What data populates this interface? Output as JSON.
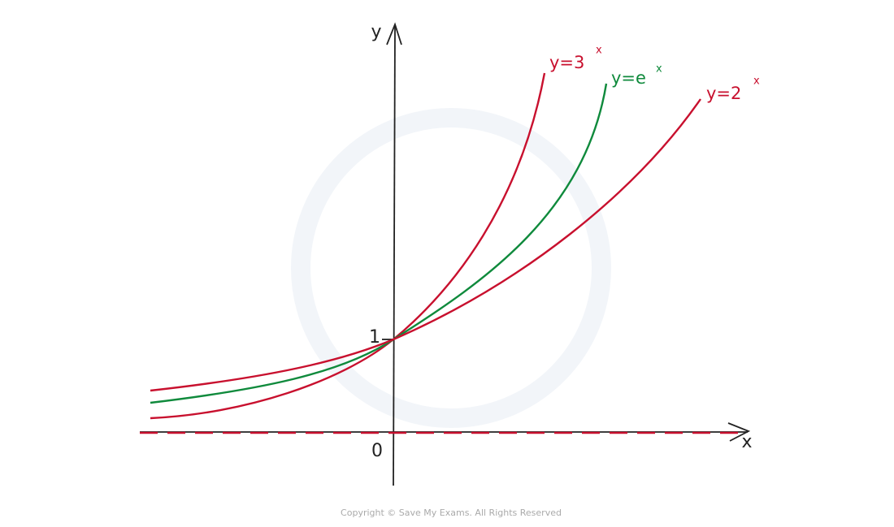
{
  "axes": {
    "x_label": "x",
    "y_label": "y",
    "origin_label": "0",
    "y_intercept_label": "1"
  },
  "curves": [
    {
      "label": "y=3",
      "exponent": "x"
    },
    {
      "label": "y=e",
      "exponent": "x"
    },
    {
      "label": "y=2",
      "exponent": "x"
    }
  ],
  "footer": {
    "copyright": "Copyright © Save My Exams. All Rights Reserved"
  }
}
